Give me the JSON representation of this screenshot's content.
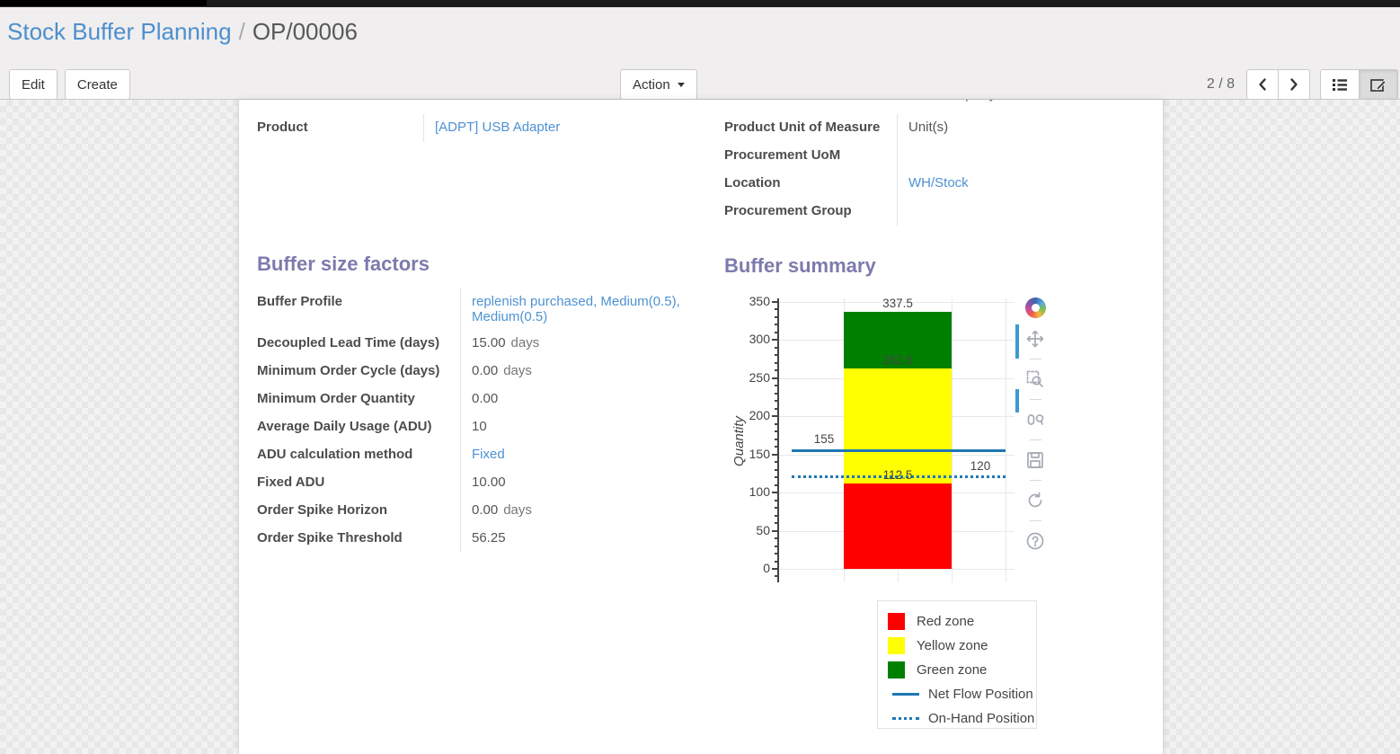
{
  "breadcrumb": {
    "section": "Stock Buffer Planning",
    "separator": "/",
    "record": "OP/00006"
  },
  "control_panel": {
    "buttons": {
      "edit": "Edit",
      "create": "Create",
      "action": "Action"
    },
    "pager": {
      "counter": "2 / 8"
    },
    "view_switcher_icons": [
      "list-icon",
      "form-edit-icon"
    ]
  },
  "form": {
    "clipped_row_fragment": "YourCompany",
    "info_left": [
      {
        "label": "Product",
        "value": "[ADPT] USB Adapter"
      }
    ],
    "info_right": [
      {
        "label": "Product Unit of Measure",
        "value": "Unit(s)"
      },
      {
        "label": "Procurement UoM",
        "value": ""
      },
      {
        "label": "Location",
        "value": "WH/Stock"
      },
      {
        "label": "Procurement Group",
        "value": ""
      }
    ],
    "buffer_factors": {
      "heading": "Buffer size factors",
      "fields": [
        {
          "label": "Buffer Profile",
          "value": "replenish purchased, Medium(0.5), Medium(0.5)",
          "suffix": ""
        },
        {
          "label": "Decoupled Lead Time (days)",
          "value": "15.00",
          "suffix": "days"
        },
        {
          "label": "Minimum Order Cycle (days)",
          "value": "0.00",
          "suffix": "days"
        },
        {
          "label": "Minimum Order Quantity",
          "value": "0.00",
          "suffix": ""
        },
        {
          "label": "Average Daily Usage (ADU)",
          "value": "10",
          "suffix": ""
        },
        {
          "label": "ADU calculation method",
          "value": "Fixed",
          "suffix": ""
        },
        {
          "label": "Fixed ADU",
          "value": "10.00",
          "suffix": ""
        },
        {
          "label": "Order Spike Horizon",
          "value": "0.00",
          "suffix": "days"
        },
        {
          "label": "Order Spike Threshold",
          "value": "56.25",
          "suffix": ""
        }
      ]
    },
    "buffer_summary_heading": "Buffer summary"
  },
  "chart_data": {
    "type": "bar",
    "title": "",
    "xlabel": "",
    "ylabel": "Quantity",
    "ylim": [
      0,
      350
    ],
    "ytick_step": 50,
    "minor_tick_step": 10,
    "grid": true,
    "legend_position": "bottom-right",
    "zones": [
      {
        "name": "Red zone",
        "from": 0,
        "to": 112.5,
        "color": "#ff0000"
      },
      {
        "name": "Yellow zone",
        "from": 112.5,
        "to": 262.5,
        "color": "#ffff00"
      },
      {
        "name": "Green zone",
        "from": 262.5,
        "to": 337.5,
        "color": "#008000"
      }
    ],
    "boundary_labels": [
      "337.5",
      "262.5",
      "112.5"
    ],
    "lines": [
      {
        "name": "Net Flow Position",
        "value": 155,
        "label": "155",
        "style": "solid",
        "color": "#1f77b4",
        "label_side": "left"
      },
      {
        "name": "On-Hand Position",
        "value": 120,
        "label": "120",
        "style": "dotted",
        "color": "#1f77b4",
        "label_side": "right"
      }
    ],
    "modebar_icons": [
      "plotly-logo-icon",
      "pan-icon",
      "box-zoom-icon",
      "hover-compare-icon",
      "save-icon",
      "reset-axes-icon",
      "help-icon"
    ]
  },
  "colors": {
    "heading": "#7c7bad",
    "link": "#4e92d2",
    "line_blue": "#1f77b4",
    "modebar_accent": "#3d9ad1"
  }
}
